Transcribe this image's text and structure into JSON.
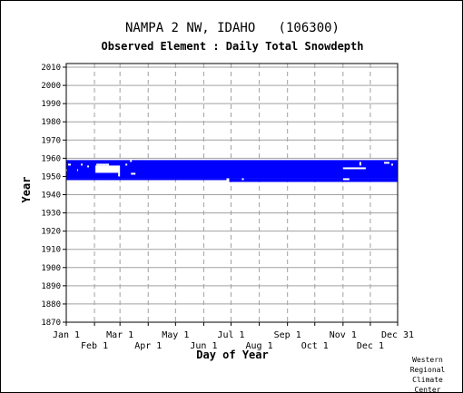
{
  "chart_data": {
    "type": "bar",
    "title": "NAMPA 2 NW, IDAHO   (106300)",
    "subtitle": "Observed Element : Daily Total Snowdepth",
    "xlabel": "Day of Year",
    "ylabel": "Year",
    "credit": [
      "Western",
      "Regional",
      "Climate",
      "Center"
    ],
    "x_range": [
      1,
      365
    ],
    "ylim": [
      1870,
      2012
    ],
    "grid": true,
    "y_ticks": [
      1870,
      1880,
      1890,
      1900,
      1910,
      1920,
      1930,
      1940,
      1950,
      1960,
      1970,
      1980,
      1990,
      2000,
      2010
    ],
    "x_ticks_top_row": [
      {
        "label": "Jan 1",
        "day": 1
      },
      {
        "label": "Mar 1",
        "day": 60
      },
      {
        "label": "May 1",
        "day": 121
      },
      {
        "label": "Jul 1",
        "day": 182
      },
      {
        "label": "Sep 1",
        "day": 244
      },
      {
        "label": "Nov 1",
        "day": 305
      },
      {
        "label": "Dec 31",
        "day": 365
      }
    ],
    "x_ticks_bottom_row": [
      {
        "label": "Feb 1",
        "day": 32
      },
      {
        "label": "Apr 1",
        "day": 91
      },
      {
        "label": "Jun 1",
        "day": 152
      },
      {
        "label": "Aug 1",
        "day": 213
      },
      {
        "label": "Oct 1",
        "day": 274
      },
      {
        "label": "Dec 1",
        "day": 335
      }
    ],
    "coverage_color": "#0000ff",
    "coverage": [
      {
        "day_start": 1,
        "day_end": 365,
        "year_start": 1949,
        "year_end": 1959
      },
      {
        "day_start": 1,
        "day_end": 177,
        "year_start": 1948,
        "year_end": 1949
      },
      {
        "day_start": 180,
        "day_end": 365,
        "year_start": 1947,
        "year_end": 1949
      }
    ],
    "no_data": [
      {
        "day_start": 1,
        "day_end": 2,
        "year_start": 1953,
        "year_end": 1954
      },
      {
        "day_start": 3,
        "day_end": 6,
        "year_start": 1956,
        "year_end": 1957
      },
      {
        "day_start": 13,
        "day_end": 14,
        "year_start": 1953,
        "year_end": 1954
      },
      {
        "day_start": 17,
        "day_end": 19,
        "year_start": 1956,
        "year_end": 1957
      },
      {
        "day_start": 24,
        "day_end": 26,
        "year_start": 1955,
        "year_end": 1956
      },
      {
        "day_start": 33,
        "day_end": 60,
        "year_start": 1952,
        "year_end": 1956
      },
      {
        "day_start": 34,
        "day_end": 48,
        "year_start": 1956,
        "year_end": 1957
      },
      {
        "day_start": 58,
        "day_end": 60,
        "year_start": 1950,
        "year_end": 1952
      },
      {
        "day_start": 66,
        "day_end": 68,
        "year_start": 1956,
        "year_end": 1957
      },
      {
        "day_start": 71,
        "day_end": 73,
        "year_start": 1958,
        "year_end": 1959
      },
      {
        "day_start": 72,
        "day_end": 77,
        "year_start": 1951,
        "year_end": 1952
      },
      {
        "day_start": 194,
        "day_end": 196,
        "year_start": 1948,
        "year_end": 1949
      },
      {
        "day_start": 305,
        "day_end": 330,
        "year_start": 1954,
        "year_end": 1955
      },
      {
        "day_start": 323,
        "day_end": 325,
        "year_start": 1956,
        "year_end": 1958
      },
      {
        "day_start": 305,
        "day_end": 312,
        "year_start": 1948,
        "year_end": 1949
      },
      {
        "day_start": 350,
        "day_end": 356,
        "year_start": 1957,
        "year_end": 1958
      },
      {
        "day_start": 358,
        "day_end": 360,
        "year_start": 1956,
        "year_end": 1957
      }
    ]
  }
}
